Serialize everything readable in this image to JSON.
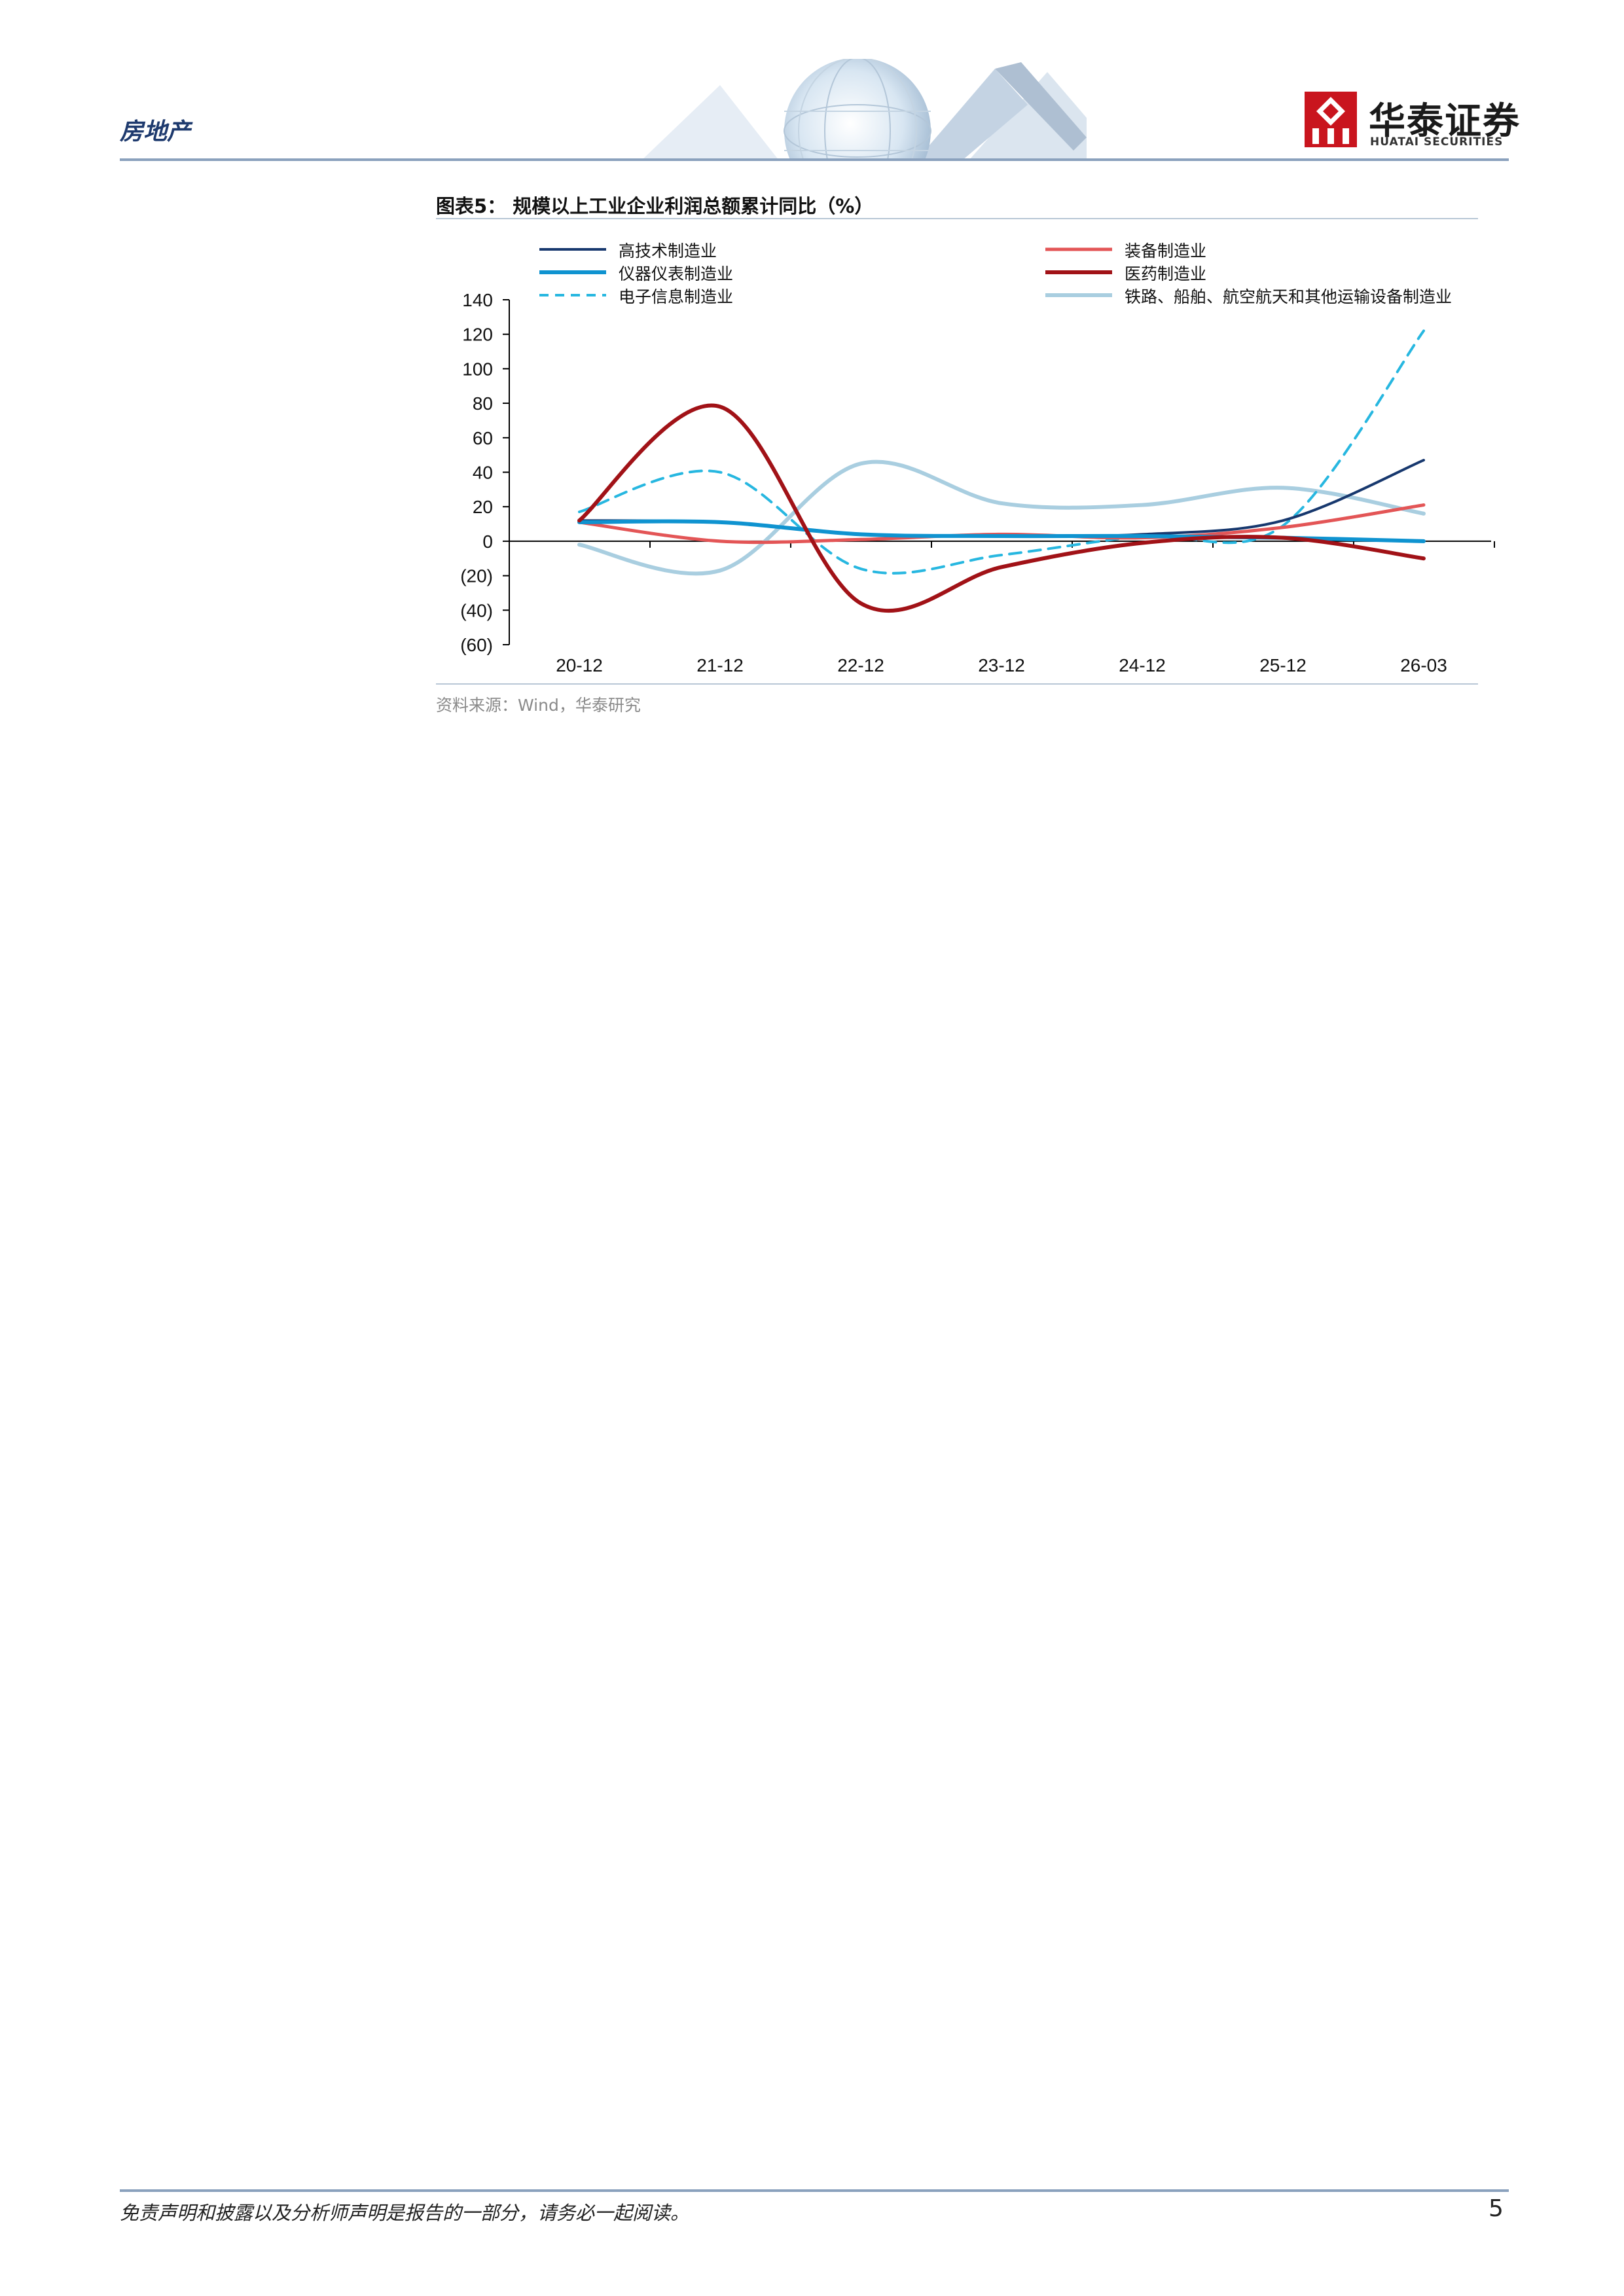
{
  "header": {
    "section": "房地产",
    "brand_cn": "华泰证券",
    "brand_en": "HUATAI SECURITIES"
  },
  "figure": {
    "title": "图表5：  规模以上工业企业利润总额累计同比（%）",
    "source": "资料来源：Wind，华泰研究"
  },
  "chart_data": {
    "type": "line",
    "categories": [
      "20-12",
      "21-12",
      "22-12",
      "23-12",
      "24-12",
      "25-12",
      "26-03"
    ],
    "y_tick_labels": [
      "140",
      "120",
      "100",
      "80",
      "60",
      "40",
      "20",
      "0",
      "(20)",
      "(40)",
      "(60)"
    ],
    "ylim": [
      -60,
      140
    ],
    "grid": false,
    "legend_position": "top",
    "series": [
      {
        "name": "高技术制造业",
        "color": "#17386e",
        "dash": false,
        "width": 4,
        "values": [
          12,
          11,
          4,
          3,
          4,
          12,
          47
        ]
      },
      {
        "name": "装备制造业",
        "color": "#e35556",
        "dash": false,
        "width": 5,
        "values": [
          11,
          0,
          1,
          4,
          2,
          8,
          21
        ]
      },
      {
        "name": "仪器仪表制造业",
        "color": "#0f93d0",
        "dash": false,
        "width": 6,
        "values": [
          11,
          11,
          4,
          3,
          3,
          2,
          0
        ]
      },
      {
        "name": "医药制造业",
        "color": "#a11217",
        "dash": false,
        "width": 6,
        "values": [
          12,
          78,
          -36,
          -15,
          -1,
          2,
          -10
        ]
      },
      {
        "name": "电子信息制造业",
        "color": "#27b7e0",
        "dash": true,
        "width": 4,
        "values": [
          17,
          40,
          -16,
          -8,
          3,
          9,
          122
        ]
      },
      {
        "name": "铁路、船舶、航空航天和其他运输设备制造业",
        "color": "#a9cee0",
        "dash": false,
        "width": 6,
        "values": [
          -2,
          -17,
          45,
          22,
          21,
          31,
          16
        ]
      }
    ]
  },
  "footer": {
    "disclaimer": "免责声明和披露以及分析师声明是报告的一部分，请务必一起阅读。",
    "page_number": "5"
  }
}
